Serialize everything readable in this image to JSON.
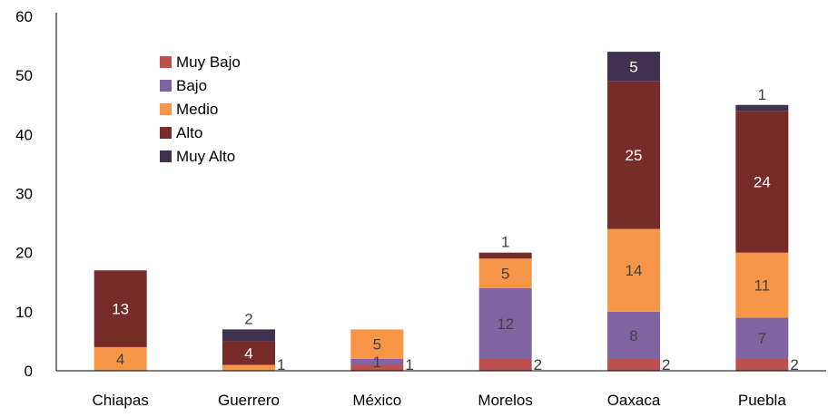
{
  "chart_data": {
    "type": "bar",
    "stacked": true,
    "categories": [
      "Chiapas",
      "Guerrero",
      "México",
      "Morelos",
      "Oaxaca",
      "Puebla"
    ],
    "series": [
      {
        "name": "Muy Bajo",
        "color": "#c0504d",
        "values": [
          0,
          0,
          1,
          2,
          2,
          2
        ]
      },
      {
        "name": "Bajo",
        "color": "#8064a2",
        "values": [
          0,
          0,
          1,
          12,
          8,
          7
        ]
      },
      {
        "name": "Medio",
        "color": "#f79646",
        "values": [
          4,
          1,
          5,
          5,
          14,
          11
        ]
      },
      {
        "name": "Alto",
        "color": "#772c2a",
        "values": [
          13,
          4,
          0,
          1,
          25,
          24
        ]
      },
      {
        "name": "Muy Alto",
        "color": "#403151",
        "values": [
          0,
          2,
          0,
          0,
          5,
          1
        ]
      }
    ],
    "ylim": [
      0,
      60
    ],
    "yticks": [
      0,
      10,
      20,
      30,
      40,
      50,
      60
    ],
    "legend_position": "top-left",
    "grid": false,
    "data_labels": [
      {
        "category": "Chiapas",
        "series": "Medio",
        "text": "4",
        "placement": "inside"
      },
      {
        "category": "Chiapas",
        "series": "Alto",
        "text": "13",
        "placement": "inside"
      },
      {
        "category": "Guerrero",
        "series": "Medio",
        "text": "1",
        "placement": "right"
      },
      {
        "category": "Guerrero",
        "series": "Alto",
        "text": "4",
        "placement": "inside"
      },
      {
        "category": "Guerrero",
        "series": "Muy Alto",
        "text": "2",
        "placement": "above"
      },
      {
        "category": "México",
        "series": "Muy Bajo",
        "text": "1",
        "placement": "right"
      },
      {
        "category": "México",
        "series": "Bajo",
        "text": "1",
        "placement": "inside"
      },
      {
        "category": "México",
        "series": "Medio",
        "text": "5",
        "placement": "inside"
      },
      {
        "category": "Morelos",
        "series": "Muy Bajo",
        "text": "2",
        "placement": "right"
      },
      {
        "category": "Morelos",
        "series": "Bajo",
        "text": "12",
        "placement": "inside"
      },
      {
        "category": "Morelos",
        "series": "Medio",
        "text": "5",
        "placement": "inside"
      },
      {
        "category": "Morelos",
        "series": "Alto",
        "text": "1",
        "placement": "above"
      },
      {
        "category": "Oaxaca",
        "series": "Muy Bajo",
        "text": "2",
        "placement": "right"
      },
      {
        "category": "Oaxaca",
        "series": "Bajo",
        "text": "8",
        "placement": "inside"
      },
      {
        "category": "Oaxaca",
        "series": "Medio",
        "text": "14",
        "placement": "inside"
      },
      {
        "category": "Oaxaca",
        "series": "Alto",
        "text": "25",
        "placement": "inside"
      },
      {
        "category": "Oaxaca",
        "series": "Muy Alto",
        "text": "5",
        "placement": "inside"
      },
      {
        "category": "Puebla",
        "series": "Muy Bajo",
        "text": "2",
        "placement": "right"
      },
      {
        "category": "Puebla",
        "series": "Bajo",
        "text": "7",
        "placement": "inside"
      },
      {
        "category": "Puebla",
        "series": "Medio",
        "text": "11",
        "placement": "inside"
      },
      {
        "category": "Puebla",
        "series": "Alto",
        "text": "24",
        "placement": "inside"
      },
      {
        "category": "Puebla",
        "series": "Muy Alto",
        "text": "1",
        "placement": "above"
      }
    ]
  }
}
